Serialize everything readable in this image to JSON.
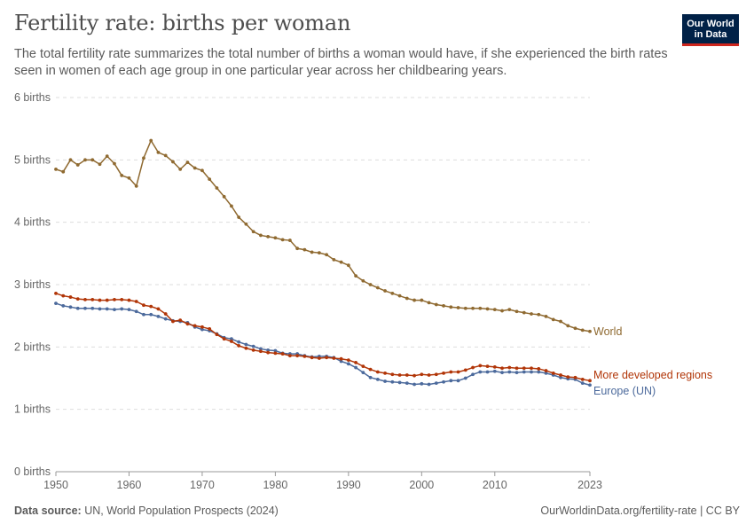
{
  "header": {
    "title": "Fertility rate: births per woman",
    "subtitle": "The total fertility rate summarizes the total number of births a woman would have, if she experienced the birth rates seen in women of each age group in one particular year across her childbearing years."
  },
  "logo": {
    "line1": "Our World",
    "line2": "in Data",
    "bg_color": "#002147",
    "accent_color": "#ce261e"
  },
  "footer": {
    "source_label": "Data source:",
    "source_text": " UN, World Population Prospects (2024)",
    "url_text": "OurWorldinData.org/fertility-rate | CC BY"
  },
  "chart_data": {
    "type": "line",
    "xlabel": "",
    "ylabel": "",
    "xlim": [
      1950,
      2023
    ],
    "ylim": [
      0,
      6
    ],
    "x_ticks": [
      1950,
      1960,
      1970,
      1980,
      1990,
      2000,
      2010,
      2023
    ],
    "y_ticks": [
      0,
      1,
      2,
      3,
      4,
      5,
      6
    ],
    "y_tick_labels": [
      "0 births",
      "1 births",
      "2 births",
      "3 births",
      "4 births",
      "5 births",
      "6 births"
    ],
    "grid": "horizontal dashed",
    "legend": "line-end labels at right",
    "series": [
      {
        "name": "World",
        "color": "#8f6a31",
        "x": [
          1950,
          1951,
          1952,
          1953,
          1954,
          1955,
          1956,
          1957,
          1958,
          1959,
          1960,
          1961,
          1962,
          1963,
          1964,
          1965,
          1966,
          1967,
          1968,
          1969,
          1970,
          1971,
          1972,
          1973,
          1974,
          1975,
          1976,
          1977,
          1978,
          1979,
          1980,
          1981,
          1982,
          1983,
          1984,
          1985,
          1986,
          1987,
          1988,
          1989,
          1990,
          1991,
          1992,
          1993,
          1994,
          1995,
          1996,
          1997,
          1998,
          1999,
          2000,
          2001,
          2002,
          2003,
          2004,
          2005,
          2006,
          2007,
          2008,
          2009,
          2010,
          2011,
          2012,
          2013,
          2014,
          2015,
          2016,
          2017,
          2018,
          2019,
          2020,
          2021,
          2022,
          2023
        ],
        "values": [
          4.85,
          4.81,
          5.0,
          4.92,
          5.0,
          5.0,
          4.93,
          5.06,
          4.94,
          4.75,
          4.71,
          4.58,
          5.03,
          5.31,
          5.12,
          5.07,
          4.97,
          4.85,
          4.96,
          4.87,
          4.83,
          4.69,
          4.55,
          4.41,
          4.26,
          4.08,
          3.97,
          3.85,
          3.79,
          3.77,
          3.75,
          3.72,
          3.71,
          3.58,
          3.56,
          3.52,
          3.51,
          3.48,
          3.4,
          3.36,
          3.31,
          3.14,
          3.06,
          3.0,
          2.95,
          2.9,
          2.86,
          2.82,
          2.78,
          2.75,
          2.75,
          2.71,
          2.68,
          2.66,
          2.64,
          2.63,
          2.62,
          2.62,
          2.62,
          2.61,
          2.6,
          2.58,
          2.6,
          2.57,
          2.55,
          2.53,
          2.52,
          2.49,
          2.44,
          2.41,
          2.34,
          2.3,
          2.27,
          2.25
        ]
      },
      {
        "name": "More developed regions",
        "color": "#b13507",
        "x": [
          1950,
          1951,
          1952,
          1953,
          1954,
          1955,
          1956,
          1957,
          1958,
          1959,
          1960,
          1961,
          1962,
          1963,
          1964,
          1965,
          1966,
          1967,
          1968,
          1969,
          1970,
          1971,
          1972,
          1973,
          1974,
          1975,
          1976,
          1977,
          1978,
          1979,
          1980,
          1981,
          1982,
          1983,
          1984,
          1985,
          1986,
          1987,
          1988,
          1989,
          1990,
          1991,
          1992,
          1993,
          1994,
          1995,
          1996,
          1997,
          1998,
          1999,
          2000,
          2001,
          2002,
          2003,
          2004,
          2005,
          2006,
          2007,
          2008,
          2009,
          2010,
          2011,
          2012,
          2013,
          2014,
          2015,
          2016,
          2017,
          2018,
          2019,
          2020,
          2021,
          2022,
          2023
        ],
        "values": [
          2.86,
          2.82,
          2.8,
          2.77,
          2.76,
          2.76,
          2.75,
          2.75,
          2.76,
          2.76,
          2.75,
          2.73,
          2.67,
          2.65,
          2.61,
          2.53,
          2.41,
          2.43,
          2.37,
          2.34,
          2.32,
          2.29,
          2.2,
          2.13,
          2.09,
          2.02,
          1.98,
          1.95,
          1.93,
          1.91,
          1.9,
          1.89,
          1.86,
          1.86,
          1.85,
          1.83,
          1.82,
          1.83,
          1.82,
          1.81,
          1.79,
          1.75,
          1.69,
          1.64,
          1.6,
          1.58,
          1.56,
          1.55,
          1.55,
          1.54,
          1.56,
          1.55,
          1.56,
          1.58,
          1.6,
          1.6,
          1.63,
          1.67,
          1.7,
          1.69,
          1.68,
          1.66,
          1.67,
          1.66,
          1.66,
          1.66,
          1.65,
          1.62,
          1.58,
          1.55,
          1.52,
          1.51,
          1.48,
          1.46
        ]
      },
      {
        "name": "Europe (UN)",
        "color": "#4c6a9c",
        "x": [
          1950,
          1951,
          1952,
          1953,
          1954,
          1955,
          1956,
          1957,
          1958,
          1959,
          1960,
          1961,
          1962,
          1963,
          1964,
          1965,
          1966,
          1967,
          1968,
          1969,
          1970,
          1971,
          1972,
          1973,
          1974,
          1975,
          1976,
          1977,
          1978,
          1979,
          1980,
          1981,
          1982,
          1983,
          1984,
          1985,
          1986,
          1987,
          1988,
          1989,
          1990,
          1991,
          1992,
          1993,
          1994,
          1995,
          1996,
          1997,
          1998,
          1999,
          2000,
          2001,
          2002,
          2003,
          2004,
          2005,
          2006,
          2007,
          2008,
          2009,
          2010,
          2011,
          2012,
          2013,
          2014,
          2015,
          2016,
          2017,
          2018,
          2019,
          2020,
          2021,
          2022,
          2023
        ],
        "values": [
          2.7,
          2.66,
          2.64,
          2.62,
          2.62,
          2.62,
          2.61,
          2.61,
          2.6,
          2.61,
          2.6,
          2.57,
          2.52,
          2.52,
          2.49,
          2.45,
          2.42,
          2.41,
          2.39,
          2.32,
          2.28,
          2.26,
          2.21,
          2.15,
          2.13,
          2.08,
          2.04,
          2.01,
          1.97,
          1.95,
          1.94,
          1.9,
          1.89,
          1.89,
          1.86,
          1.84,
          1.85,
          1.85,
          1.83,
          1.77,
          1.73,
          1.67,
          1.59,
          1.51,
          1.48,
          1.45,
          1.44,
          1.43,
          1.42,
          1.4,
          1.41,
          1.4,
          1.42,
          1.44,
          1.46,
          1.46,
          1.5,
          1.56,
          1.6,
          1.6,
          1.61,
          1.59,
          1.6,
          1.59,
          1.6,
          1.6,
          1.6,
          1.58,
          1.55,
          1.51,
          1.49,
          1.48,
          1.42,
          1.39
        ]
      }
    ]
  }
}
